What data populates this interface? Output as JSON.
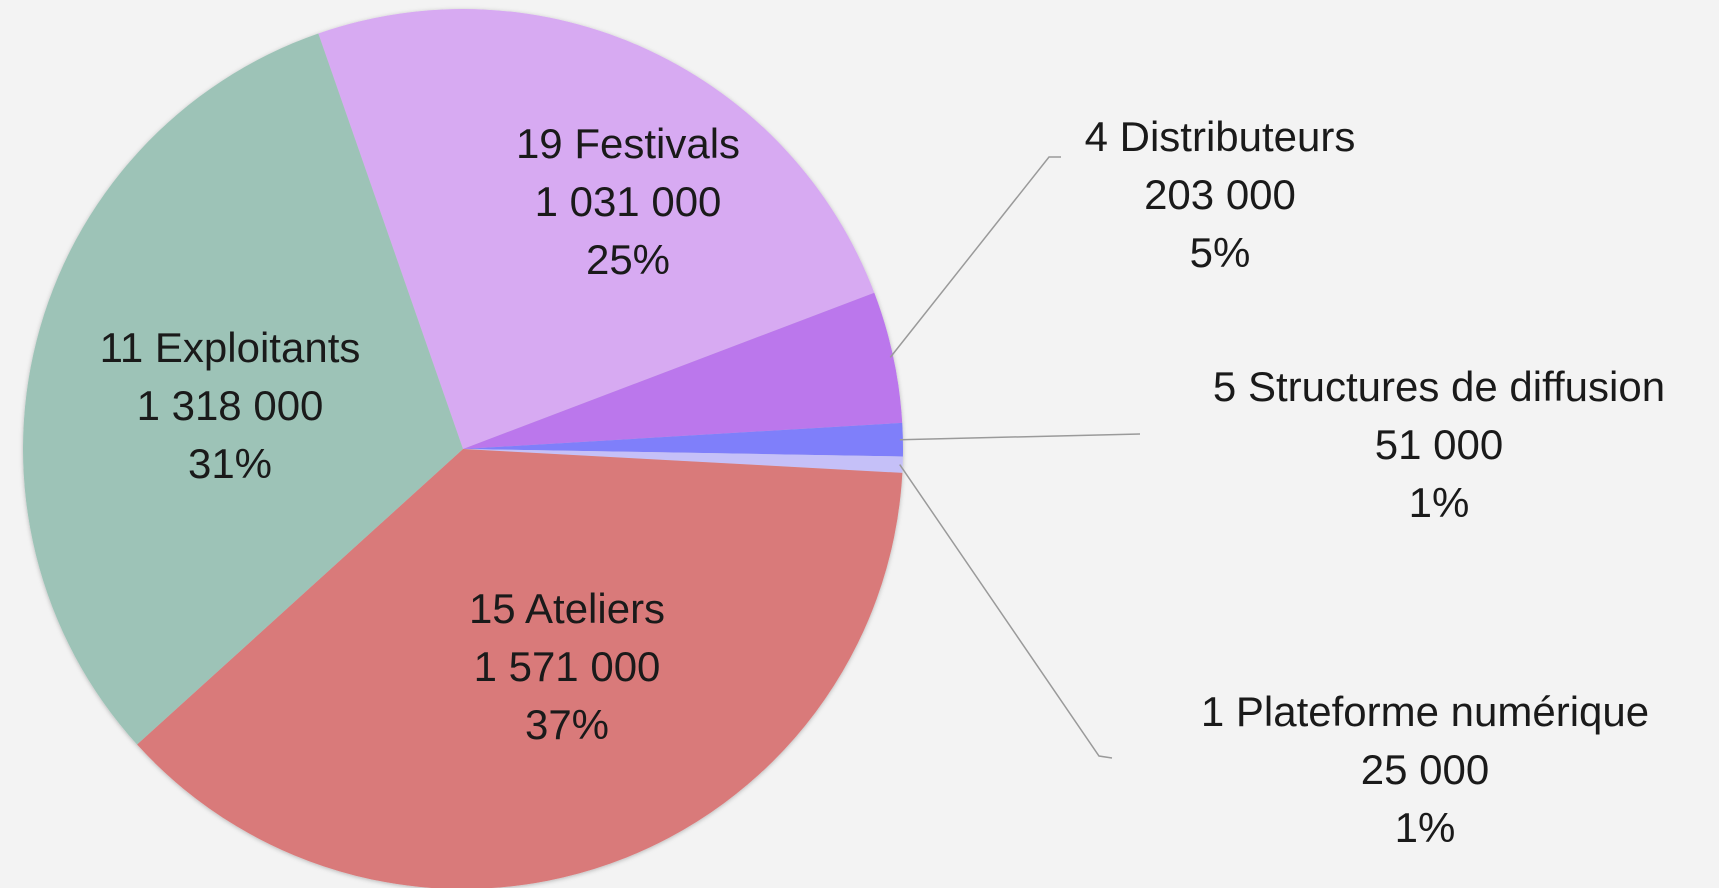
{
  "chart_data": {
    "type": "pie",
    "categories": [
      "19 Festivals",
      "4 Distributeurs",
      "5 Structures de diffusion",
      "1 Plateforme numérique",
      "15 Ateliers",
      "11 Exploitants"
    ],
    "values": [
      1031000,
      203000,
      51000,
      25000,
      1571000,
      1318000
    ],
    "value_labels": [
      "1 031 000",
      "203 000",
      "51 000",
      "25 000",
      "1 571 000",
      "1 318 000"
    ],
    "percentages": [
      25,
      5,
      1,
      1,
      37,
      31
    ],
    "percentage_labels": [
      "25%",
      "5%",
      "1%",
      "1%",
      "37%",
      "31%"
    ],
    "colors": [
      "#d7aaf2",
      "#bb77ec",
      "#7f7ffa",
      "#c5c0f8",
      "#d97a7a",
      "#9dc3b7"
    ]
  }
}
